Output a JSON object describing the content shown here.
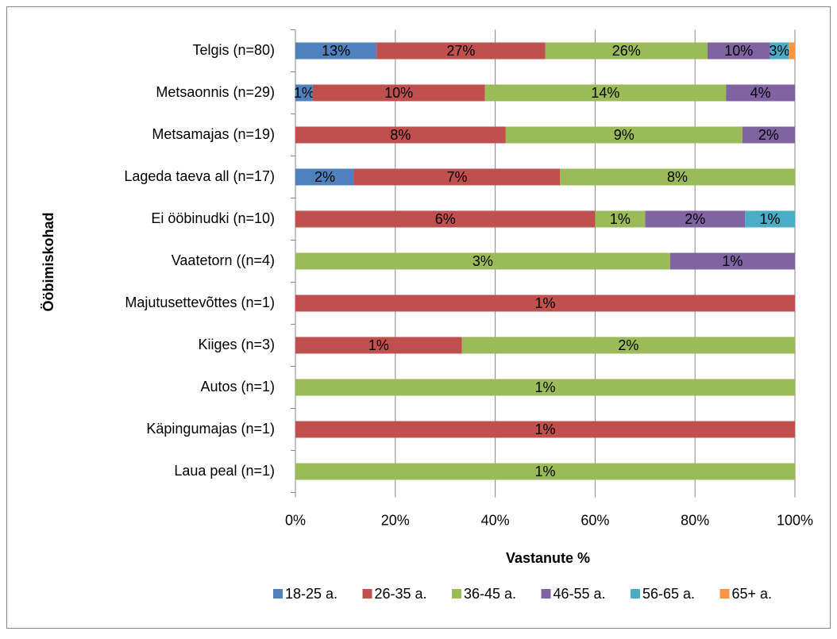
{
  "chart_data": {
    "type": "bar",
    "orientation": "horizontal",
    "stacking": "percent",
    "categories": [
      "Telgis (n=80)",
      "Metsaonnis (n=29)",
      "Metsamajas (n=19)",
      "Lageda taeva all (n=17)",
      "Ei ööbinudki (n=10)",
      "Vaatetorn ((n=4)",
      "Majutusettevõttes (n=1)",
      "Kiiges (n=3)",
      "Autos (n=1)",
      "Käpingumajas (n=1)",
      "Laua peal (n=1)"
    ],
    "series": [
      {
        "name": "18-25 a.",
        "color": "#4f81bd",
        "values": [
          13,
          1,
          null,
          2,
          null,
          null,
          null,
          null,
          null,
          null,
          null
        ],
        "value_labels": [
          "13%",
          "1%",
          null,
          "2%",
          null,
          null,
          null,
          null,
          null,
          null,
          null
        ]
      },
      {
        "name": "26-35 a.",
        "color": "#c0504d",
        "values": [
          27,
          10,
          8,
          7,
          6,
          null,
          1,
          1,
          null,
          1,
          null
        ],
        "value_labels": [
          "27%",
          "10%",
          "8%",
          "7%",
          "6%",
          null,
          "1%",
          "1%",
          null,
          "1%",
          null
        ]
      },
      {
        "name": "36-45 a.",
        "color": "#9bbb59",
        "values": [
          26,
          14,
          9,
          8,
          1,
          3,
          null,
          2,
          1,
          null,
          1
        ],
        "value_labels": [
          "26%",
          "14%",
          "9%",
          "8%",
          "1%",
          "3%",
          null,
          "2%",
          "1%",
          null,
          "1%"
        ]
      },
      {
        "name": "46-55 a.",
        "color": "#8064a2",
        "values": [
          10,
          4,
          2,
          null,
          2,
          1,
          null,
          null,
          null,
          null,
          null
        ],
        "value_labels": [
          "10%",
          "4%",
          "2%",
          null,
          "2%",
          "1%",
          null,
          null,
          null,
          null,
          null
        ]
      },
      {
        "name": "56-65 a.",
        "color": "#4bacc6",
        "values": [
          3,
          null,
          null,
          null,
          1,
          null,
          null,
          null,
          null,
          null,
          null
        ],
        "value_labels": [
          "3%",
          null,
          null,
          null,
          "1%",
          null,
          null,
          null,
          null,
          null,
          null
        ]
      },
      {
        "name": "65+ a.",
        "color": "#f79646",
        "values": [
          1,
          null,
          null,
          null,
          null,
          null,
          null,
          null,
          null,
          null,
          null
        ],
        "value_labels": [
          null,
          null,
          null,
          null,
          null,
          null,
          null,
          null,
          null,
          null,
          null
        ]
      }
    ],
    "xlabel": "Vastanute %",
    "ylabel": "Ööbimiskohad",
    "xlim": [
      0,
      100
    ],
    "xticks": [
      {
        "value": 0,
        "label": "0%"
      },
      {
        "value": 20,
        "label": "20%"
      },
      {
        "value": 40,
        "label": "40%"
      },
      {
        "value": 60,
        "label": "60%"
      },
      {
        "value": 80,
        "label": "80%"
      },
      {
        "value": 100,
        "label": "100%"
      }
    ],
    "grid": true,
    "legend": "bottom"
  }
}
